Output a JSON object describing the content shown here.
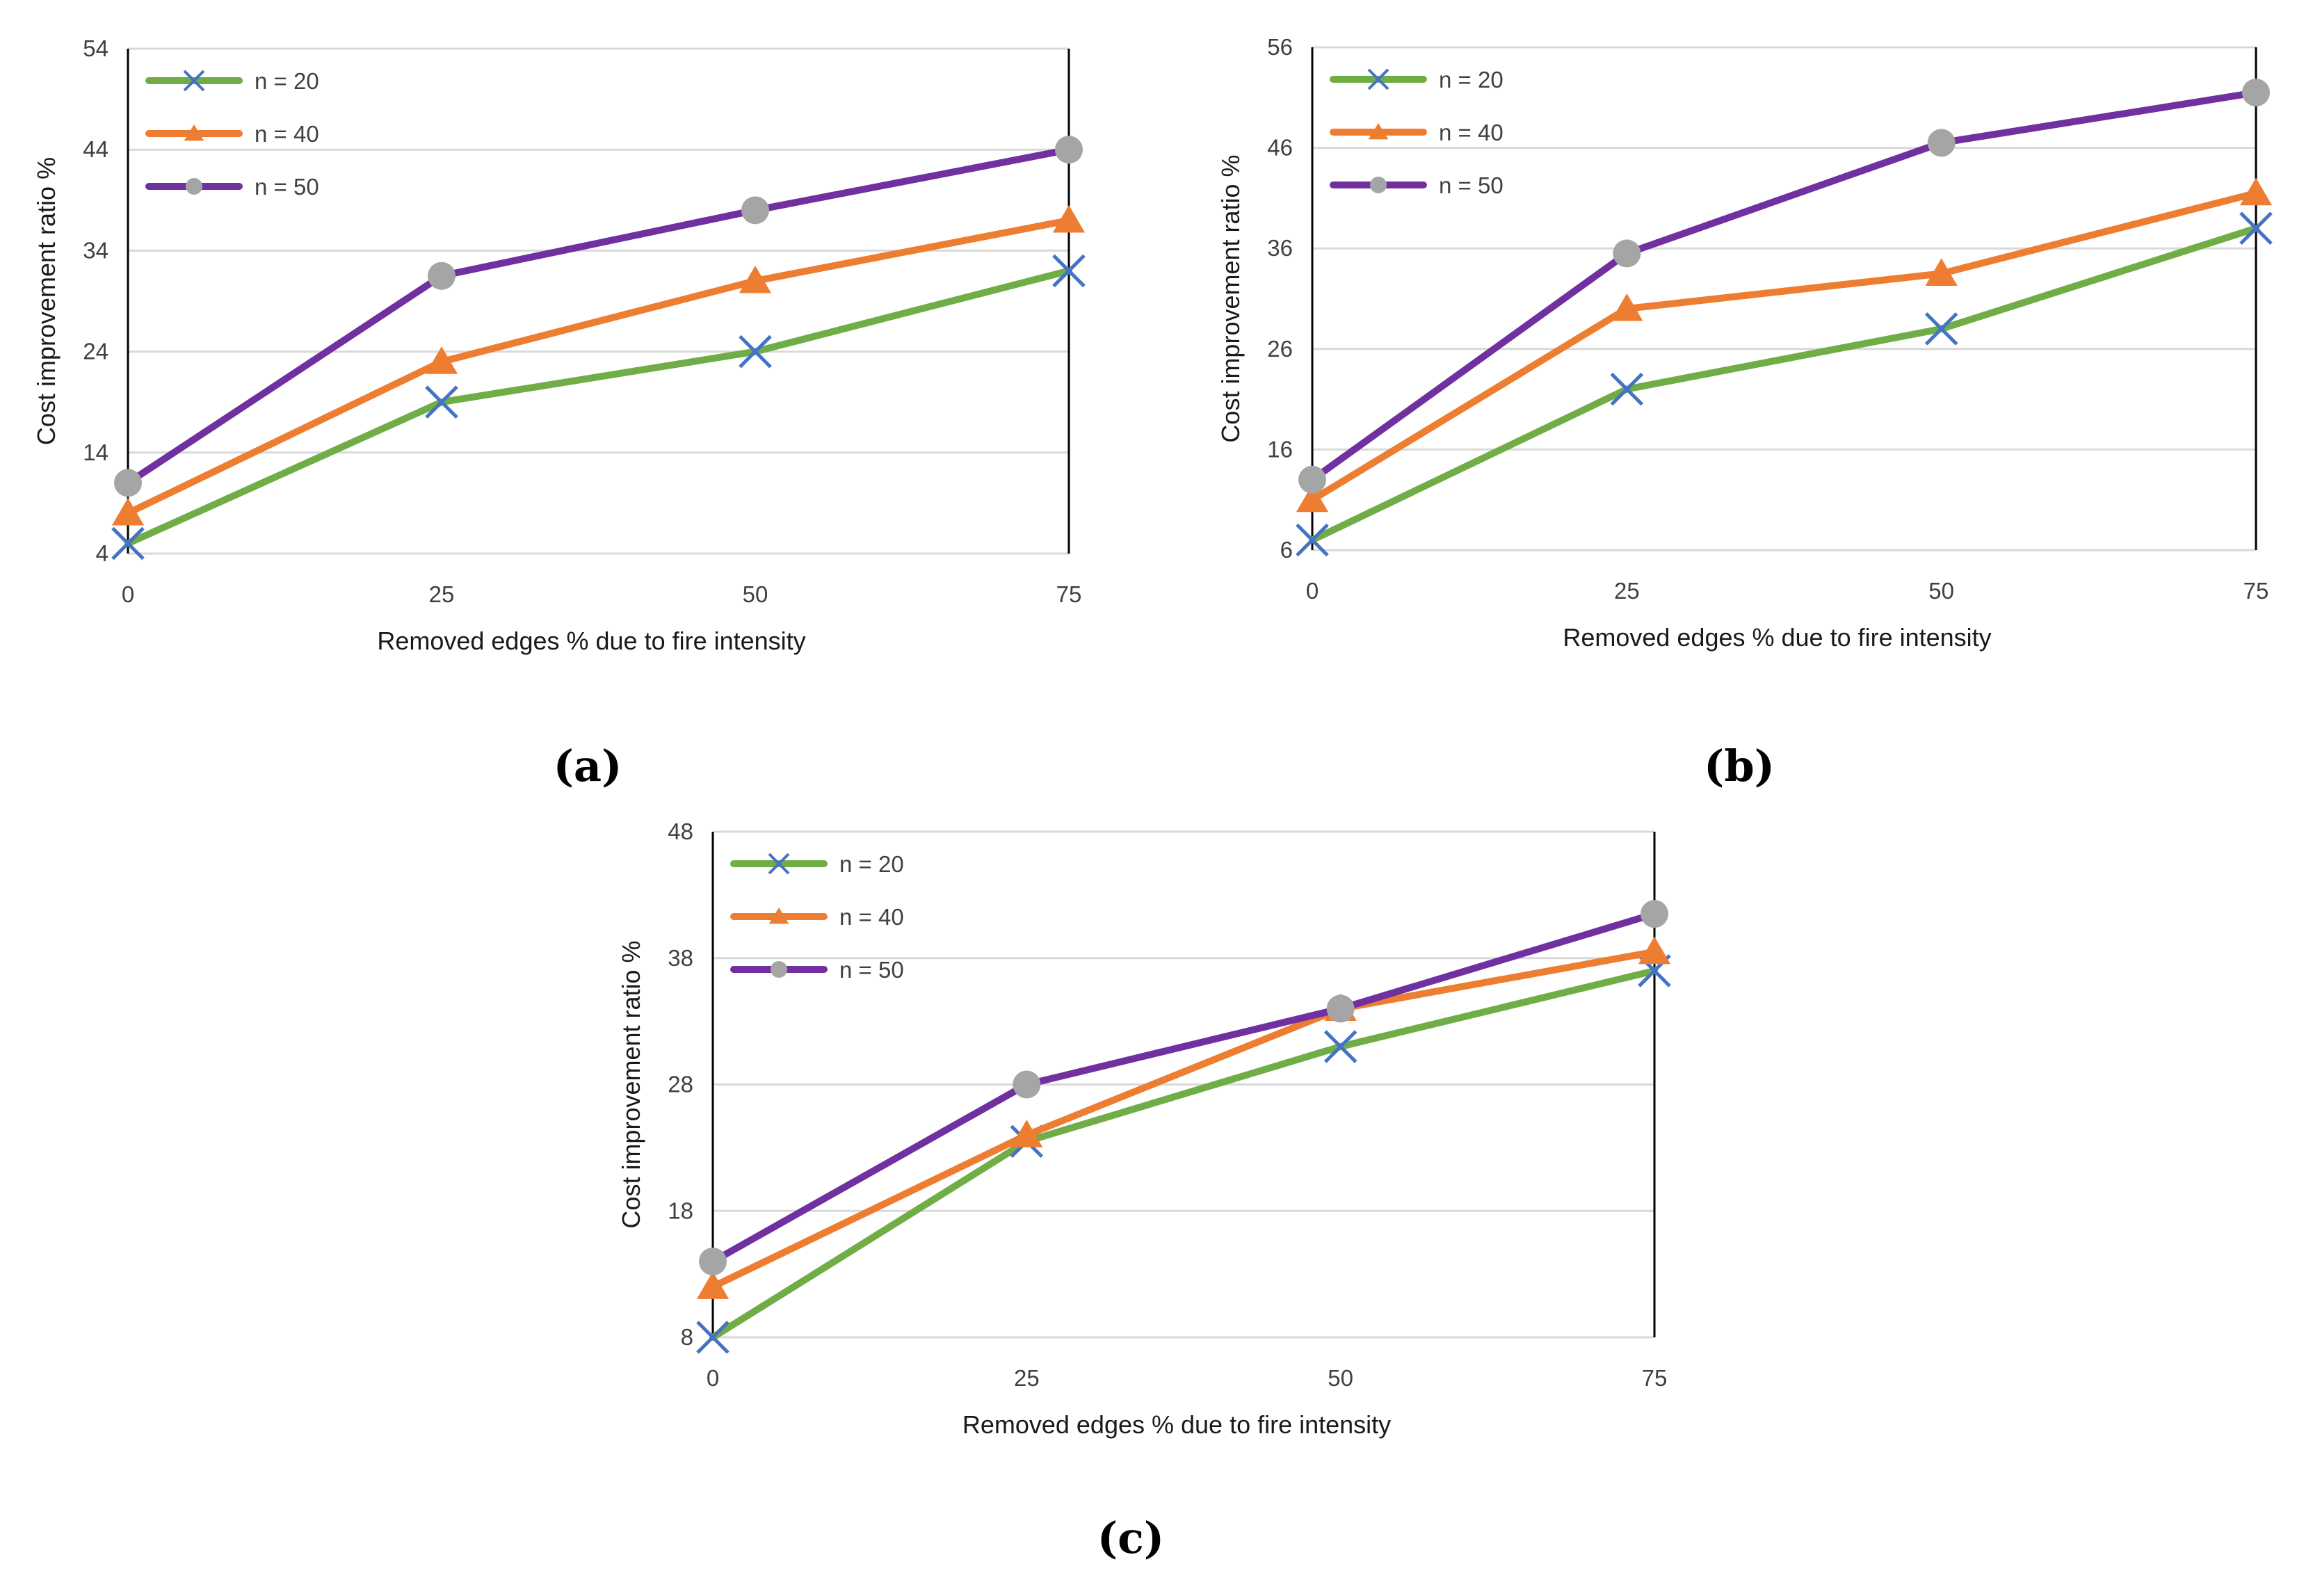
{
  "colors": {
    "n20_line": "#70AD47",
    "n20_marker": "#4472C4",
    "n40": "#ED7D31",
    "n50_line": "#7030A0",
    "n50_marker": "#A5A5A5",
    "grid": "#D9D9D9",
    "axis": "#000000"
  },
  "chart_data": [
    {
      "panel": "a",
      "caption": "(a)",
      "type": "line",
      "xlabel": "Removed edges % due to fire intensity",
      "ylabel": "Cost improvement ratio %",
      "categories": [
        "0",
        "25",
        "50",
        "75"
      ],
      "yticks": [
        "4",
        "14",
        "24",
        "34",
        "44",
        "54"
      ],
      "ylim": [
        4,
        54
      ],
      "grid": true,
      "legend": "top-left",
      "series": [
        {
          "name": "n = 20",
          "marker": "x",
          "values": [
            5,
            19,
            24,
            32
          ]
        },
        {
          "name": "n = 40",
          "marker": "triangle",
          "values": [
            8,
            23,
            31,
            37
          ]
        },
        {
          "name": "n = 50",
          "marker": "circle",
          "values": [
            11,
            31.5,
            38,
            44
          ]
        }
      ]
    },
    {
      "panel": "b",
      "caption": "(b)",
      "type": "line",
      "xlabel": "Removed edges % due to fire intensity",
      "ylabel": "Cost improvement ratio %",
      "categories": [
        "0",
        "25",
        "50",
        "75"
      ],
      "yticks": [
        "6",
        "16",
        "26",
        "36",
        "46",
        "56"
      ],
      "ylim": [
        6,
        56
      ],
      "grid": true,
      "legend": "top-left",
      "series": [
        {
          "name": "n = 20",
          "marker": "x",
          "values": [
            7,
            22,
            28,
            38
          ]
        },
        {
          "name": "n = 40",
          "marker": "triangle",
          "values": [
            11,
            30,
            33.5,
            41.5
          ]
        },
        {
          "name": "n = 50",
          "marker": "circle",
          "values": [
            13,
            35.5,
            46.5,
            51.5
          ]
        }
      ]
    },
    {
      "panel": "c",
      "caption": "(c)",
      "type": "line",
      "xlabel": "Removed edges % due to fire intensity",
      "ylabel": "Cost improvement ratio %",
      "categories": [
        "0",
        "25",
        "50",
        "75"
      ],
      "yticks": [
        "8",
        "18",
        "28",
        "38",
        "48"
      ],
      "ylim": [
        8,
        48
      ],
      "grid": true,
      "legend": "top-left",
      "series": [
        {
          "name": "n = 20",
          "marker": "x",
          "values": [
            8,
            23.5,
            31,
            37
          ]
        },
        {
          "name": "n = 40",
          "marker": "triangle",
          "values": [
            12,
            24,
            34,
            38.5
          ]
        },
        {
          "name": "n = 50",
          "marker": "circle",
          "values": [
            14,
            28,
            34,
            41.5
          ]
        }
      ]
    }
  ]
}
